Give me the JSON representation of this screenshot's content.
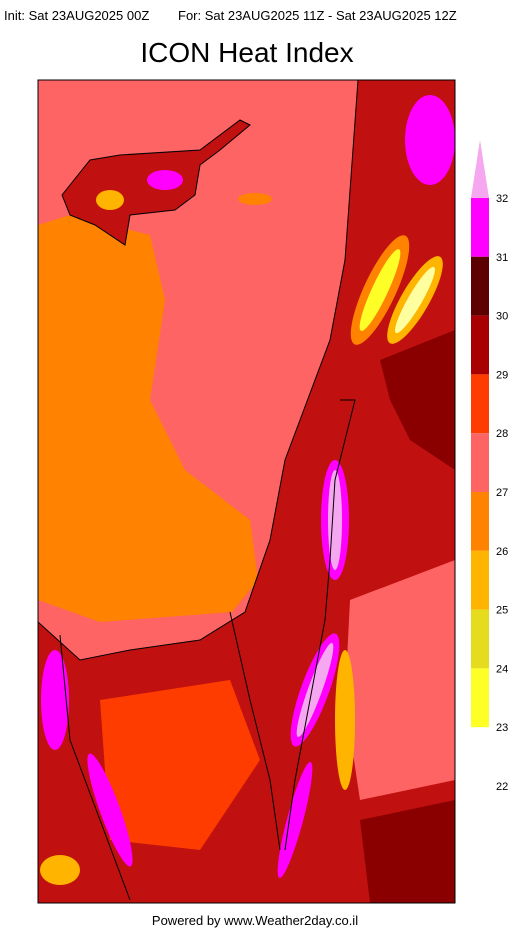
{
  "header": {
    "init": "Init: Sat 23AUG2025 00Z",
    "valid": "For: Sat 23AUG2025 11Z - Sat 23AUG2025 12Z"
  },
  "title": "ICON Heat Index",
  "legend": {
    "levels": [
      32,
      31,
      30,
      29,
      28,
      27,
      26,
      25,
      24,
      23,
      22
    ],
    "colors": [
      "#ff00ff",
      "#5c0000",
      "#a80000",
      "#ff3c00",
      "#ff6464",
      "#ff8200",
      "#ffb400",
      "#e6dc1e",
      "#ffff28"
    ],
    "over_color": "#f5a8f0"
  },
  "footer": "Powered by www.Weather2day.co.il"
}
